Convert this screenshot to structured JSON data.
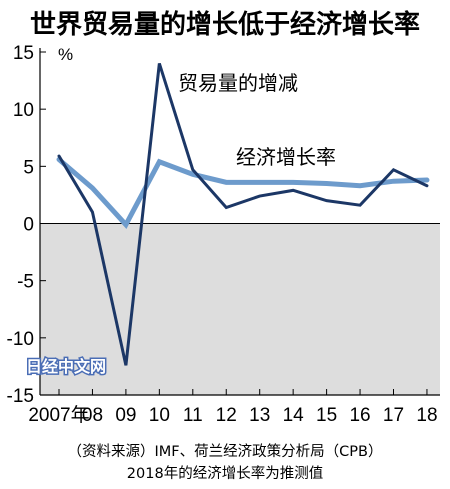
{
  "title": "世界贸易量的增长低于经济增长率",
  "source_line": "（资料来源）IMF、荷兰经济政策分析局（CPB）",
  "note_line": "2018年的经济增长率为推测值",
  "watermark": "日经中文网",
  "colors": {
    "trade": "#1c3766",
    "gdp": "#6d9bcc",
    "negative_bg": "#dddddd"
  },
  "chart_data": {
    "type": "line",
    "title": "世界贸易量的增长低于经济增长率",
    "ylabel": "%",
    "xlabel": "",
    "ylim": [
      -15,
      15
    ],
    "y_ticks": [
      "15",
      "10",
      "5",
      "0",
      "-5",
      "-10",
      "-15"
    ],
    "x": [
      "2007年",
      "08",
      "09",
      "10",
      "11",
      "12",
      "13",
      "14",
      "15",
      "16",
      "17",
      "18"
    ],
    "grid": false,
    "series": [
      {
        "name": "贸易量的增减",
        "values": [
          5.9,
          1.0,
          -12.4,
          14.0,
          4.7,
          1.4,
          2.4,
          2.9,
          2.0,
          1.6,
          4.7,
          3.3
        ]
      },
      {
        "name": "经济增长率",
        "values": [
          5.6,
          3.1,
          -0.1,
          5.4,
          4.3,
          3.6,
          3.6,
          3.6,
          3.5,
          3.3,
          3.7,
          3.8
        ]
      }
    ]
  }
}
